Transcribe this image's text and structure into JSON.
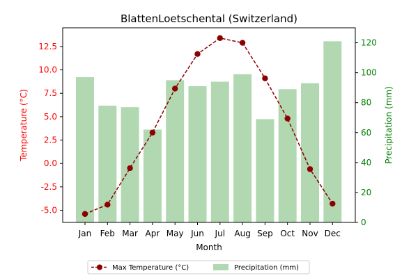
{
  "chart_data": {
    "type": "bar+line",
    "title": "BlattenLoetschental (Switzerland)",
    "xlabel": "Month",
    "ylabel_left": "Temperature (°C)",
    "ylabel_right": "Precipitation (mm)",
    "categories": [
      "Jan",
      "Feb",
      "Mar",
      "Apr",
      "May",
      "Jun",
      "Jul",
      "Aug",
      "Sep",
      "Oct",
      "Nov",
      "Dec"
    ],
    "series": [
      {
        "name": "Max Temperature (°C)",
        "kind": "line",
        "axis": "left",
        "color": "#8b0000",
        "values": [
          -5.4,
          -4.4,
          -0.5,
          3.3,
          8.0,
          11.7,
          13.4,
          12.9,
          9.1,
          4.8,
          -0.6,
          -4.3
        ]
      },
      {
        "name": "Precipitation (mm)",
        "kind": "bar",
        "axis": "right",
        "color": "#b2d8b2",
        "values": [
          97,
          78,
          77,
          62,
          95,
          91,
          94,
          99,
          69,
          89,
          93,
          121
        ]
      }
    ],
    "ylim_left": [
      -6.3,
      14.5
    ],
    "yticks_left": [
      "-5.0",
      "-2.5",
      "0.0",
      "2.5",
      "5.0",
      "7.5",
      "10.0",
      "12.5"
    ],
    "ylim_right": [
      0,
      130
    ],
    "yticks_right": [
      "0",
      "20",
      "40",
      "60",
      "80",
      "100",
      "120"
    ],
    "left_axis_color": "#ff0000",
    "right_axis_color": "#008000",
    "grid": false,
    "legend": "bottom-center, outside"
  }
}
